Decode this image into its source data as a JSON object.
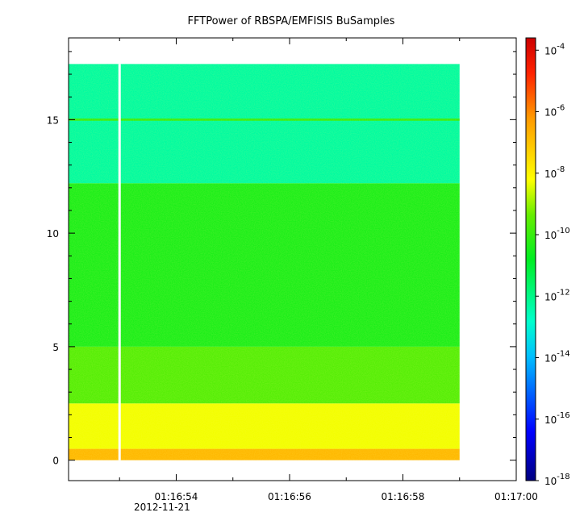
{
  "chart_data": {
    "type": "heatmap",
    "title": "FFTPower of RBSPA/EMFISIS  BuSamples",
    "xlabel": "",
    "ylabel": "",
    "x_ticks": [
      "",
      "01:16:54",
      "",
      "01:16:56",
      "",
      "01:16:58",
      "",
      "01:17:00"
    ],
    "x_tick_values": [
      52.5,
      53.5,
      54.5,
      55.5,
      56.5,
      57.5,
      58.5,
      59.5
    ],
    "x_range_seconds": [
      51.6,
      59.5
    ],
    "data_x_range_seconds": [
      51.6,
      58.5
    ],
    "gap_seconds": 52.5,
    "date_label": "2012-11-21",
    "y_ticks": [
      "0",
      "5",
      "10",
      "15"
    ],
    "y_tick_values": [
      0,
      5,
      10,
      15
    ],
    "ylim": [
      -0.9,
      18.6
    ],
    "data_y_range": [
      0,
      17.45
    ],
    "colorbar": {
      "scale": "log",
      "range": [
        -18,
        -3.6
      ],
      "tick_exponents": [
        -4,
        -6,
        -8,
        -10,
        -12,
        -14,
        -16,
        -18
      ],
      "tick_base": "10",
      "colormap": [
        "#00007f",
        "#0000ff",
        "#007fff",
        "#00ffff",
        "#00ff7f",
        "#00ff00",
        "#7fff00",
        "#ffff00",
        "#ff7f00",
        "#ff0000",
        "#d00000"
      ]
    },
    "features": [
      {
        "y_range": [
          0.0,
          0.5
        ],
        "log_power": -6.8
      },
      {
        "y_range": [
          0.5,
          2.5
        ],
        "log_power": -8.3
      },
      {
        "y_range": [
          2.5,
          5.0
        ],
        "log_power": -9.6
      },
      {
        "y_range": [
          5.0,
          12.2
        ],
        "log_power": -10.4
      },
      {
        "y_range": [
          12.2,
          17.45
        ],
        "log_power": -12.3
      },
      {
        "y_range": [
          14.95,
          15.05
        ],
        "log_power": -10.0
      }
    ]
  }
}
